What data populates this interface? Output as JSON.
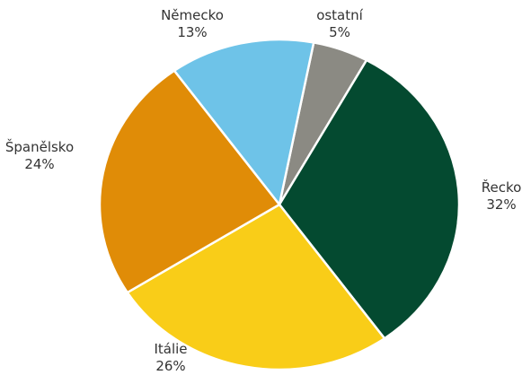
{
  "chart_data": {
    "type": "pie",
    "categories": [
      "ostatní",
      "Řecko",
      "Itálie",
      "Španělsko",
      "Německo"
    ],
    "values": [
      5,
      32,
      26,
      24,
      13
    ],
    "value_labels": [
      "5%",
      "32%",
      "26%",
      "24%",
      "13%"
    ],
    "colors": [
      "#8b8a83",
      "#044a30",
      "#f9cd18",
      "#e08c07",
      "#6ec3e8"
    ]
  }
}
